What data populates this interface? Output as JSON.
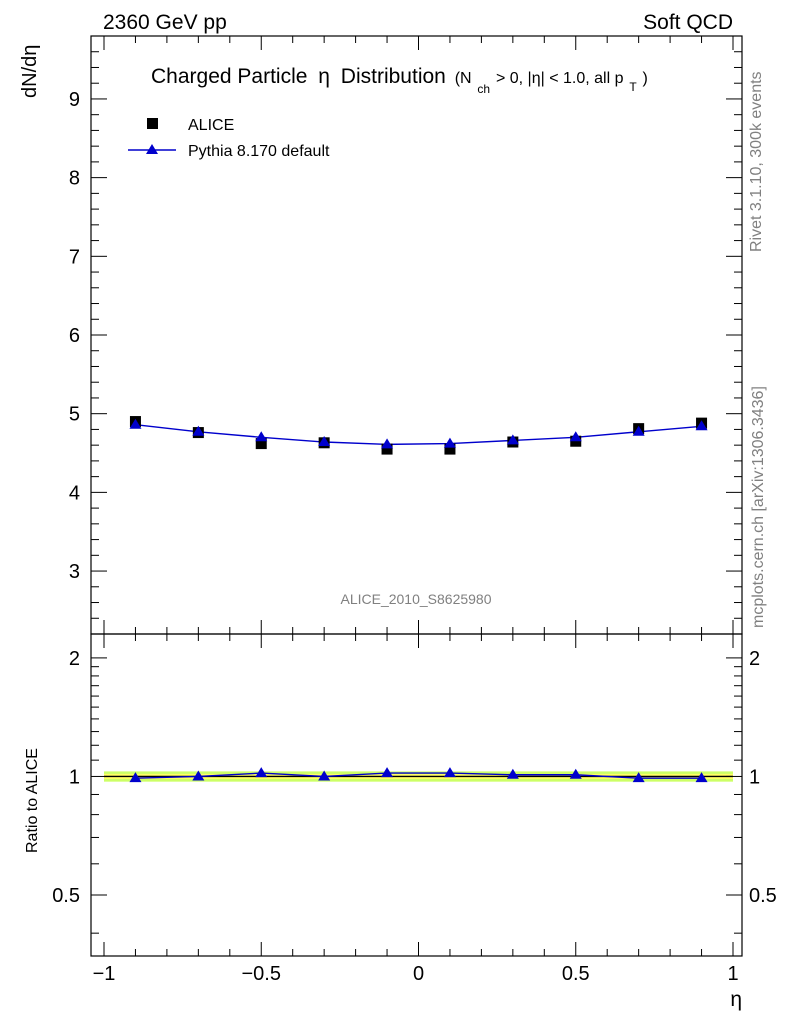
{
  "header": {
    "left": "2360 GeV pp",
    "right": "Soft QCD"
  },
  "side_text": {
    "top": "Rivet 3.1.10,  300k events",
    "bottom": "mcplots.cern.ch [arXiv:1306.3436]"
  },
  "title": {
    "main": "Charged Particle",
    "eta": "η",
    "main2": "Distribution",
    "cuts_pre": "(N",
    "cuts_sub": "ch",
    "cuts_mid": " > 0, |η| < 1.0, all p",
    "cuts_sub2": "T",
    "cuts_post": ")"
  },
  "watermark": "ALICE_2010_S8625980",
  "legend": {
    "data_label": "ALICE",
    "mc_label": "Pythia 8.170 default"
  },
  "colors": {
    "mc": "#0000cc",
    "band_inner": "#ffff66",
    "band_outer": "#ccff66"
  },
  "chart_data": {
    "type": "scatter",
    "ylabel": "dN/dη",
    "ratio_ylabel": "Ratio to ALICE",
    "xlabel": "η",
    "xlim": [
      -1.0,
      1.0
    ],
    "ylim": [
      2.2,
      9.8
    ],
    "ratio_ylim": [
      0.35,
      2.3
    ],
    "x_ticks": [
      -1,
      -0.5,
      0,
      0.5,
      1
    ],
    "x_tick_labels": [
      "−1",
      "−0.5",
      "0",
      "0.5",
      "1"
    ],
    "y_ticks": [
      3,
      4,
      5,
      6,
      7,
      8,
      9
    ],
    "ratio_ticks": [
      0.5,
      1,
      2
    ],
    "ratio_tick_labels": [
      "0.5",
      "1",
      "2"
    ],
    "series": [
      {
        "name": "ALICE",
        "x": [
          -0.9,
          -0.7,
          -0.5,
          -0.3,
          -0.1,
          0.1,
          0.3,
          0.5,
          0.7,
          0.9
        ],
        "y": [
          4.9,
          4.76,
          4.62,
          4.63,
          4.55,
          4.55,
          4.64,
          4.65,
          4.81,
          4.88
        ]
      },
      {
        "name": "Pythia 8.170 default",
        "x": [
          -0.9,
          -0.7,
          -0.5,
          -0.3,
          -0.1,
          0.1,
          0.3,
          0.5,
          0.7,
          0.9
        ],
        "y": [
          4.86,
          4.77,
          4.7,
          4.64,
          4.61,
          4.62,
          4.66,
          4.7,
          4.77,
          4.84
        ]
      }
    ],
    "ratio": {
      "x": [
        -0.9,
        -0.7,
        -0.5,
        -0.3,
        -0.1,
        0.1,
        0.3,
        0.5,
        0.7,
        0.9
      ],
      "y": [
        0.99,
        1.0,
        1.02,
        1.0,
        1.02,
        1.02,
        1.01,
        1.01,
        0.99,
        0.99
      ]
    }
  }
}
